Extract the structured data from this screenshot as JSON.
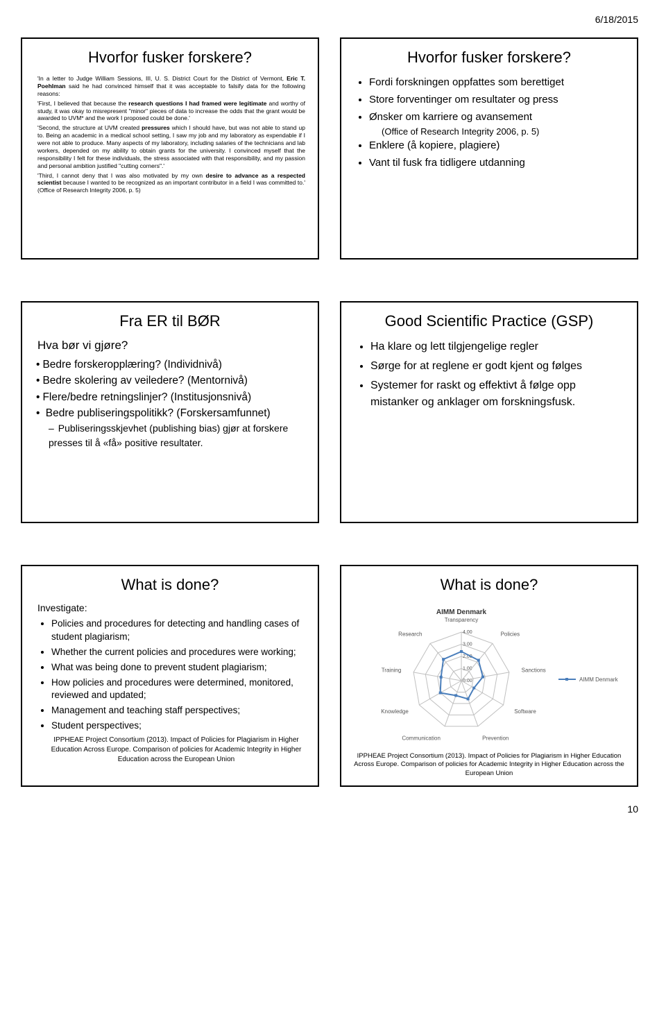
{
  "header_date": "6/18/2015",
  "footer_page": "10",
  "slide1": {
    "title": "Hvorfor fusker forskere?",
    "intro": "'In a letter to Judge William Sessions, III, U. S. District Court for the District of Vermont, ",
    "intro_bold": "Eric T. Poehlman",
    "intro_tail": " said he had convinced himself that it was acceptable to falsify data for the following reasons:",
    "p1a": "'First, I believed that because the ",
    "p1b": "research questions I had framed were legitimate",
    "p1c": " and worthy of study, it was okay to misrepresent \"minor\" pieces of data to increase the odds that the grant would be awarded to UVM* and the work I proposed could be done.'",
    "p2a": "'Second, the structure at UVM created ",
    "p2b": "pressures",
    "p2c": " which I should have, but was not able to stand up to. Being an academic in a medical school setting, I saw my job and my laboratory as expendable if I were not able to produce. Many aspects of my laboratory, including salaries of the technicians and lab workers, depended on my ability to obtain grants for the university. I convinced myself that the responsibility I felt for these individuals, the stress associated with that responsibility, and my passion and personal ambition justified \"cutting corners\".'",
    "p3a": "'Third, I cannot deny that I was also motivated by my own ",
    "p3b": "desire to advance as a respected scientist",
    "p3c": " because I wanted to be recognized as an important contributor in a field I was committed to.' (Office of Research Integrity 2006, p. 5)"
  },
  "slide2": {
    "title": "Hvorfor fusker forskere?",
    "items": [
      "Fordi forskningen oppfattes som berettiget",
      "Store forventinger om resultater og press",
      "Ønsker om karriere og avansement"
    ],
    "cite": "(Office of Research Integrity 2006, p. 5)",
    "items2": [
      "Enklere (å kopiere, plagiere)",
      "Vant til fusk fra tidligere utdanning"
    ]
  },
  "slide3": {
    "title": "Fra ER til BØR",
    "subhead": "Hva bør vi gjøre?",
    "items": [
      "Bedre forskeropplæring? (Individnivå)",
      "Bedre skolering av veiledere? (Mentornivå)",
      "Flere/bedre retningslinjer? (Institusjonsnivå)",
      "Bedre publiseringspolitikk? (Forskersamfunnet)"
    ],
    "sub": "Publiseringsskjevhet (publishing bias) gjør at forskere presses til å «få» positive resultater."
  },
  "slide4": {
    "title": "Good Scientific Practice (GSP)",
    "items": [
      "Ha klare og lett tilgjengelige regler",
      "Sørge for at reglene er godt kjent og følges",
      "Systemer for raskt og effektivt å følge opp mistanker og anklager om forskningsfusk."
    ]
  },
  "slide5": {
    "title": "What is done?",
    "subhead": "Investigate:",
    "items": [
      "Policies and procedures for detecting and handling cases of student plagiarism;",
      "Whether the current policies and procedures were working;",
      "What was being done to prevent student plagiarism;",
      "How policies and procedures were determined, monitored, reviewed and updated;",
      "Management and teaching staff perspectives;",
      "Student perspectives;"
    ],
    "ref": "IPPHEAE Project Consortium (2013). Impact of Policies for Plagiarism in Higher Education Across Europe. Comparison of policies for Academic Integrity in Higher Education across the European Union"
  },
  "slide6": {
    "title": "What is done?",
    "chart": {
      "type": "radar",
      "title": "AIMM Denmark",
      "axes": [
        "Transparency",
        "Policies",
        "Sanctions",
        "Software",
        "Prevention",
        "Communication",
        "Knowledge",
        "Training",
        "Research"
      ],
      "rings": [
        0,
        1,
        2,
        3,
        4
      ],
      "ring_labels": [
        "0.00",
        "1.00",
        "2.00",
        "3.00",
        "4.00"
      ],
      "values": [
        2.4,
        2.2,
        1.8,
        1.2,
        1.6,
        1.3,
        2.0,
        1.7,
        2.3
      ],
      "series_label": "AIMM Denmark",
      "grid_color": "#bfbfbf",
      "series_color": "#4a7ebb",
      "label_fontsize": 8,
      "title_fontsize": 10,
      "bg": "#ffffff"
    },
    "ref": "IPPHEAE Project Consortium (2013). Impact of Policies for Plagiarism in Higher Education Across Europe. Comparison of policies for Academic Integrity in Higher Education across the European Union"
  }
}
